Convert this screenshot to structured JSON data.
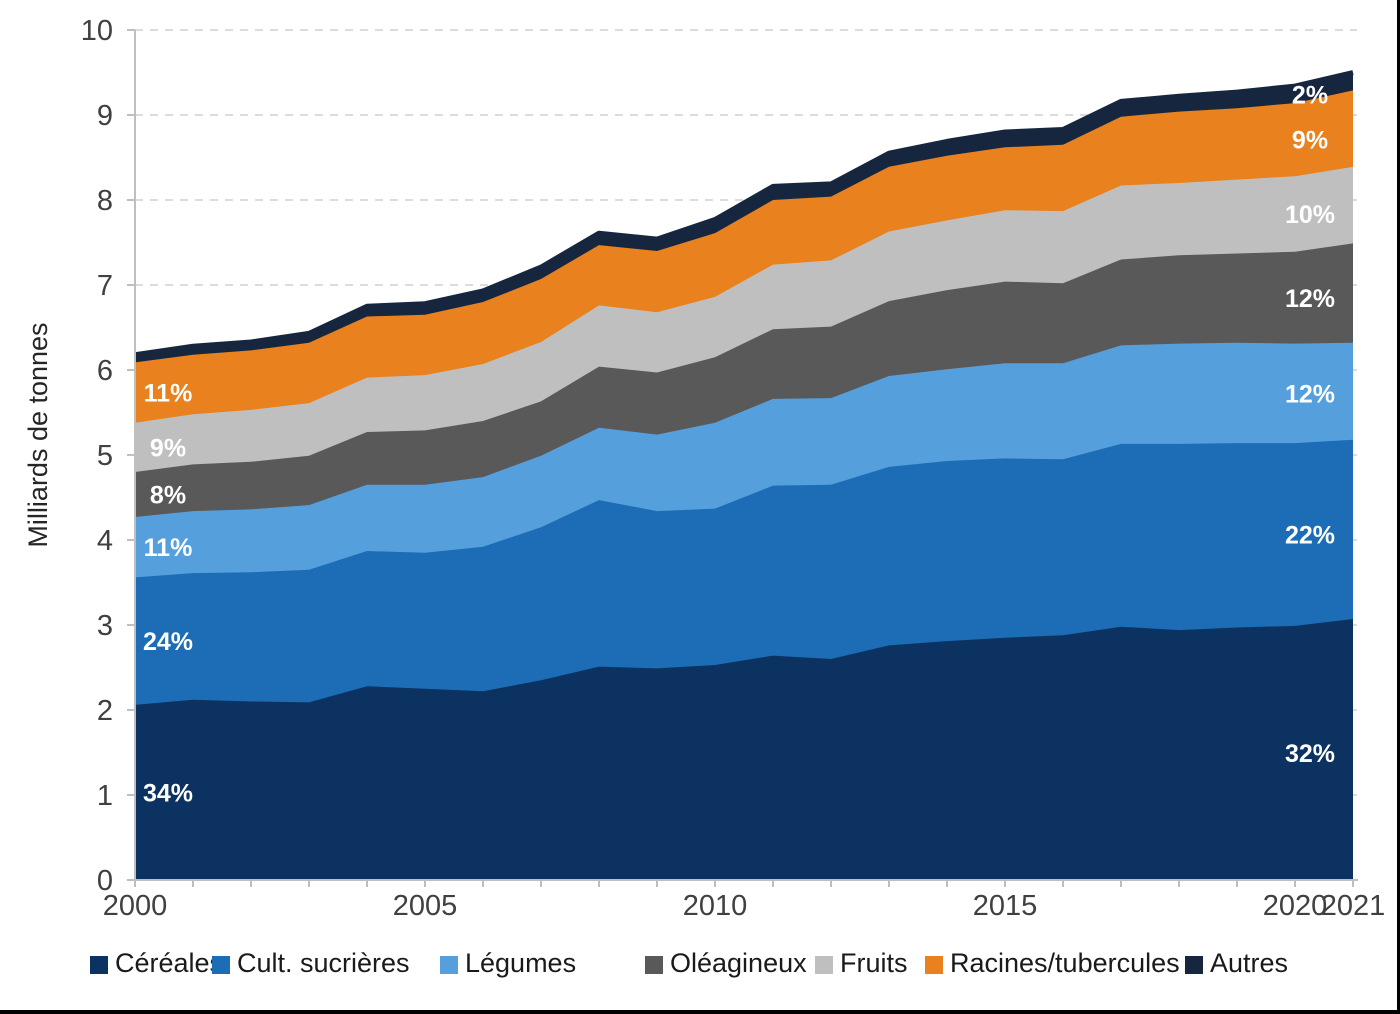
{
  "chart_data": {
    "type": "area",
    "stacked": true,
    "title": "",
    "xlabel": "",
    "ylabel": "Milliards de tonnes",
    "ylim": [
      0,
      10
    ],
    "y_ticks": [
      0,
      1,
      2,
      3,
      4,
      5,
      6,
      7,
      8,
      9,
      10
    ],
    "x_ticks": [
      2000,
      2005,
      2010,
      2015,
      2020,
      2021
    ],
    "grid": "horizontal-dashed",
    "legend_position": "bottom",
    "years": [
      2000,
      2001,
      2002,
      2003,
      2004,
      2005,
      2006,
      2007,
      2008,
      2009,
      2010,
      2011,
      2012,
      2013,
      2014,
      2015,
      2016,
      2017,
      2018,
      2019,
      2020,
      2021
    ],
    "unit": "milliards de tonnes",
    "series": [
      {
        "name": "Céréales",
        "color": "#0C3261",
        "label_2000": "34%",
        "label_2021": "32%",
        "values": [
          2.06,
          2.12,
          2.1,
          2.09,
          2.28,
          2.25,
          2.22,
          2.35,
          2.51,
          2.49,
          2.53,
          2.64,
          2.6,
          2.76,
          2.81,
          2.85,
          2.88,
          2.98,
          2.94,
          2.97,
          2.99,
          3.07
        ]
      },
      {
        "name": "Cult. sucrières",
        "color": "#1C6DB5",
        "label_2000": "24%",
        "label_2021": "22%",
        "values": [
          1.5,
          1.49,
          1.52,
          1.56,
          1.59,
          1.6,
          1.7,
          1.8,
          1.96,
          1.85,
          1.84,
          2.0,
          2.05,
          2.1,
          2.12,
          2.11,
          2.07,
          2.15,
          2.19,
          2.17,
          2.15,
          2.11
        ]
      },
      {
        "name": "Légumes",
        "color": "#55A0DC",
        "label_2000": "11%",
        "label_2021": "12%",
        "values": [
          0.71,
          0.73,
          0.74,
          0.76,
          0.78,
          0.8,
          0.82,
          0.84,
          0.85,
          0.9,
          1.01,
          1.02,
          1.02,
          1.07,
          1.08,
          1.12,
          1.13,
          1.16,
          1.18,
          1.18,
          1.17,
          1.14
        ]
      },
      {
        "name": "Oléagineux",
        "color": "#595959",
        "label_2000": "8%",
        "label_2021": "12%",
        "values": [
          0.53,
          0.55,
          0.56,
          0.58,
          0.62,
          0.64,
          0.66,
          0.64,
          0.72,
          0.73,
          0.77,
          0.82,
          0.84,
          0.88,
          0.93,
          0.96,
          0.94,
          1.01,
          1.04,
          1.05,
          1.08,
          1.17
        ]
      },
      {
        "name": "Fruits",
        "color": "#BFBFBF",
        "label_2000": "9%",
        "label_2021": "10%",
        "values": [
          0.58,
          0.59,
          0.61,
          0.62,
          0.64,
          0.65,
          0.67,
          0.7,
          0.72,
          0.71,
          0.71,
          0.76,
          0.78,
          0.82,
          0.82,
          0.84,
          0.85,
          0.87,
          0.85,
          0.87,
          0.89,
          0.9
        ]
      },
      {
        "name": "Racines/tubercules",
        "color": "#E8811E",
        "label_2000": "11%",
        "label_2021": "9%",
        "values": [
          0.71,
          0.7,
          0.7,
          0.71,
          0.72,
          0.71,
          0.73,
          0.74,
          0.71,
          0.72,
          0.75,
          0.76,
          0.75,
          0.76,
          0.76,
          0.74,
          0.78,
          0.81,
          0.84,
          0.84,
          0.86,
          0.9
        ]
      },
      {
        "name": "Autres",
        "color": "#17263F",
        "label_2000": null,
        "label_2021": "2%",
        "values": [
          0.09,
          0.1,
          0.1,
          0.11,
          0.12,
          0.13,
          0.13,
          0.14,
          0.14,
          0.14,
          0.16,
          0.16,
          0.15,
          0.16,
          0.17,
          0.18,
          0.18,
          0.18,
          0.18,
          0.19,
          0.2,
          0.21
        ]
      }
    ]
  },
  "axes": {
    "tick_color": "#BFBFBF",
    "grid_color": "#DCDCDC",
    "label_color": "#404040"
  },
  "legend": {
    "items": [
      {
        "label": "Céréales"
      },
      {
        "label": "Cult. sucrières"
      },
      {
        "label": "Légumes"
      },
      {
        "label": "Oléagineux"
      },
      {
        "label": "Fruits"
      },
      {
        "label": "Racines/tubercules"
      },
      {
        "label": "Autres"
      }
    ]
  }
}
